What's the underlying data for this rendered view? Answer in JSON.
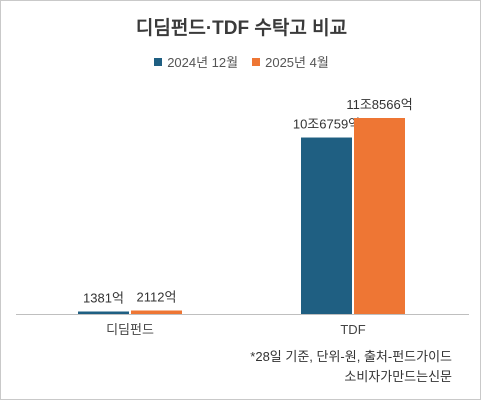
{
  "chart_data": {
    "type": "bar",
    "title": "디딤펀드·TDF 수탁고 비교",
    "categories": [
      "디딤펀드",
      "TDF"
    ],
    "series": [
      {
        "name": "2024년 12월",
        "color": "#1f5f82",
        "values": [
          1381,
          106759
        ],
        "labels": [
          "1381억",
          "10조6759억"
        ]
      },
      {
        "name": "2025년 4월",
        "color": "#ee7634",
        "values": [
          2112,
          118566
        ],
        "labels": [
          "2112억",
          "11조8566억"
        ]
      }
    ],
    "ylim": [
      0,
      120000
    ],
    "grid": false,
    "legend": "top"
  },
  "footnote": {
    "line1": "*28일 기준, 단위-원, 출처-펀드가이드",
    "line2": "소비자가만드는신문"
  }
}
